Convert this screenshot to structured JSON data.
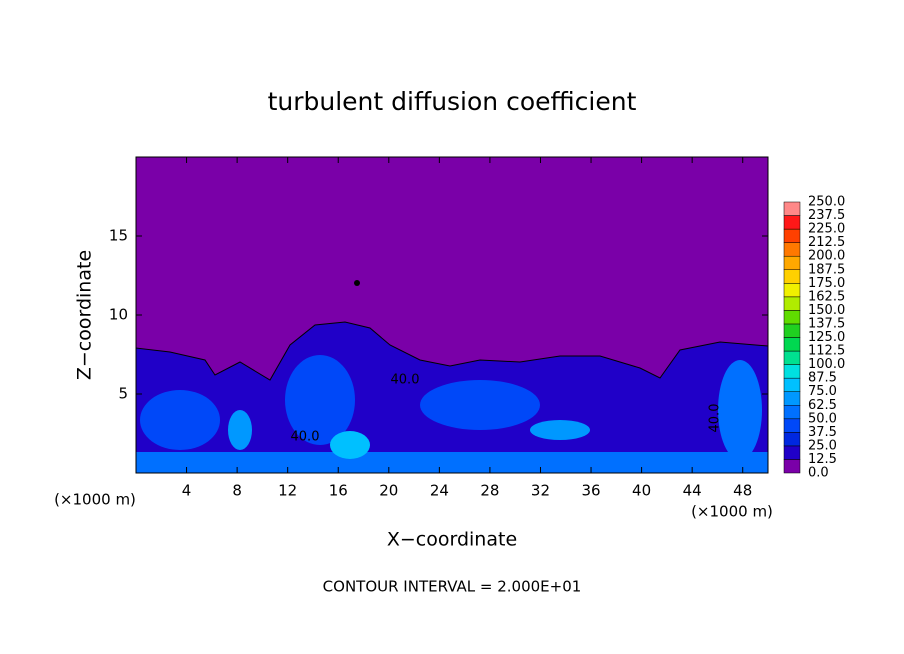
{
  "chart_data": {
    "type": "contour",
    "title": "turbulent diffusion coefficient",
    "x_label": "X−coordinate",
    "y_label": "Z−coordinate",
    "x_unit_label": "(×1000 m)",
    "footer": "CONTOUR INTERVAL = 2.000E+01",
    "xlim": [
      0,
      50
    ],
    "ylim": [
      0,
      20
    ],
    "xticks": [
      4,
      8,
      12,
      16,
      20,
      24,
      28,
      32,
      36,
      40,
      44,
      48
    ],
    "yticks": [
      5,
      10,
      15
    ],
    "contour_labels": [
      "40.0",
      "40.0",
      "40.0"
    ],
    "colorbar": {
      "levels": [
        {
          "value": 0,
          "label": "0.0"
        },
        {
          "value": 12.5,
          "label": "12.5"
        },
        {
          "value": 25,
          "label": "25.0"
        },
        {
          "value": 37.5,
          "label": "37.5"
        },
        {
          "value": 50,
          "label": "50.0"
        },
        {
          "value": 62.5,
          "label": "62.5"
        },
        {
          "value": 75,
          "label": "75.0"
        },
        {
          "value": 87.5,
          "label": "87.5"
        },
        {
          "value": 100,
          "label": "100.0"
        },
        {
          "value": 112.5,
          "label": "112.5"
        },
        {
          "value": 125,
          "label": "125.0"
        },
        {
          "value": 137.5,
          "label": "137.5"
        },
        {
          "value": 150,
          "label": "150.0"
        },
        {
          "value": 162.5,
          "label": "162.5"
        },
        {
          "value": 175,
          "label": "175.0"
        },
        {
          "value": 187.5,
          "label": "187.5"
        },
        {
          "value": 200,
          "label": "200.0"
        },
        {
          "value": 212.5,
          "label": "212.5"
        },
        {
          "value": 225,
          "label": "225.0"
        },
        {
          "value": 237.5,
          "label": "237.5"
        },
        {
          "value": 250,
          "label": "250.0"
        }
      ],
      "colors": [
        "#7a00a8",
        "#2000c8",
        "#0028e0",
        "#0048f8",
        "#0070ff",
        "#0098ff",
        "#00c0ff",
        "#00e0e0",
        "#00e090",
        "#00d850",
        "#20d020",
        "#60dc00",
        "#b0ec00",
        "#f0f000",
        "#ffd000",
        "#ffa800",
        "#ff7800",
        "#ff4000",
        "#ff1818",
        "#ff8888"
      ]
    }
  }
}
